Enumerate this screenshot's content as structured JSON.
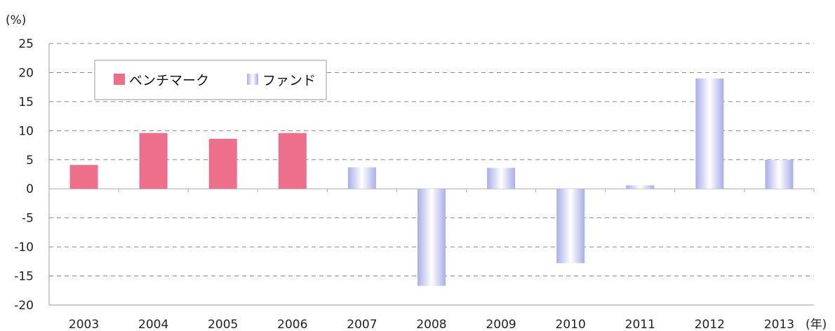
{
  "chart_data": {
    "type": "bar",
    "y_unit": "(%)",
    "x_unit": "(年)",
    "categories": [
      "2003",
      "2004",
      "2005",
      "2006",
      "2007",
      "2008",
      "2009",
      "2010",
      "2011",
      "2012",
      "2013"
    ],
    "ylim": [
      -20,
      25
    ],
    "yticks": [
      25,
      20,
      15,
      10,
      5,
      0,
      -5,
      -10,
      -15,
      -20
    ],
    "grid": true,
    "legend_position": "top-left",
    "series": [
      {
        "name": "ベンチマーク",
        "color": "#ee6f8a",
        "values": [
          4.1,
          9.6,
          8.6,
          9.6,
          null,
          null,
          null,
          null,
          null,
          null,
          null
        ]
      },
      {
        "name": "ファンド",
        "color": "#aab0ee",
        "values": [
          null,
          null,
          null,
          null,
          3.7,
          -16.7,
          3.6,
          -12.8,
          0.6,
          19.0,
          5.0
        ]
      }
    ]
  }
}
